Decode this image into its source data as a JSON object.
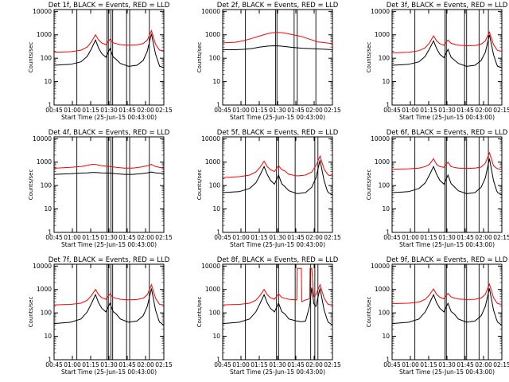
{
  "figure": {
    "x_ticks": [
      "00:45",
      "01:00",
      "01:15",
      "01:30",
      "01:45",
      "02:00",
      "02:15"
    ],
    "x_label": "Start Time (25-Jun-15 00:43:00)",
    "y_label": "Counts/sec",
    "y_ticks": [
      "1",
      "10",
      "100",
      "1000",
      "10000"
    ]
  },
  "chart_data": [
    {
      "type": "line",
      "detector": "1f",
      "title": "Det 1f, BLACK = Events, RED = LLD",
      "xlabel": "Start Time (25-Jun-15 00:43:00)",
      "ylabel": "Counts/sec",
      "xlim_minutes": [
        42,
        95
      ],
      "ylim": [
        1,
        12000
      ],
      "yscale": "log",
      "x_minutes": [
        42,
        50,
        55,
        58,
        60,
        62,
        63.5,
        65,
        67,
        69,
        70.5,
        72,
        74,
        78,
        82,
        85,
        87,
        89,
        91,
        92.5,
        93,
        95
      ],
      "series": [
        {
          "name": "LLD",
          "color": "#ff0000",
          "values": [
            180,
            190,
            220,
            300,
            500,
            1000,
            600,
            450,
            380,
            650,
            460,
            420,
            380,
            360,
            370,
            420,
            600,
            1500,
            400,
            250,
            220,
            210
          ]
        },
        {
          "name": "Events",
          "color": "#000000",
          "values": [
            50,
            55,
            70,
            120,
            250,
            600,
            270,
            160,
            110,
            260,
            115,
            90,
            60,
            45,
            50,
            80,
            200,
            1100,
            150,
            60,
            45,
            40
          ]
        }
      ],
      "vlines_minutes": [
        53,
        67.5,
        68.2,
        69.5,
        70.3,
        77,
        78.5,
        88
      ]
    },
    {
      "type": "line",
      "detector": "2f",
      "title": "Det 2f, BLACK = Events, RED = LLD",
      "xlabel": "Start Time (25-Jun-15 00:43:00)",
      "ylabel": "Counts/sec",
      "xlim_minutes": [
        42,
        95
      ],
      "ylim": [
        1,
        12000
      ],
      "yscale": "log",
      "x_minutes": [
        42,
        48,
        52,
        56,
        60,
        64,
        67,
        70,
        73,
        76,
        80,
        84,
        88,
        92,
        95
      ],
      "series": [
        {
          "name": "LLD",
          "color": "#ff0000",
          "values": [
            450,
            480,
            560,
            700,
            900,
            1150,
            1250,
            1250,
            1150,
            1000,
            850,
            650,
            500,
            450,
            420
          ]
        },
        {
          "name": "Events",
          "color": "#000000",
          "values": [
            230,
            230,
            240,
            260,
            300,
            330,
            340,
            330,
            310,
            290,
            270,
            260,
            250,
            240,
            230
          ]
        }
      ],
      "vlines_minutes": [
        53,
        67.5,
        68.2,
        76.5,
        78,
        87
      ]
    },
    {
      "type": "line",
      "detector": "3f",
      "title": "Det 3f, BLACK = Events, RED = LLD",
      "xlabel": "Start Time (25-Jun-15 00:43:00)",
      "ylabel": "Counts/sec",
      "xlim_minutes": [
        42,
        95
      ],
      "ylim": [
        1,
        12000
      ],
      "yscale": "log",
      "x_minutes": [
        42,
        50,
        55,
        58,
        60,
        62,
        63.5,
        65,
        67,
        69,
        70.5,
        72,
        74,
        78,
        82,
        85,
        87,
        89,
        91,
        92.5,
        93,
        95
      ],
      "series": [
        {
          "name": "LLD",
          "color": "#ff0000",
          "values": [
            170,
            180,
            210,
            280,
            450,
            900,
            550,
            420,
            360,
            600,
            430,
            400,
            360,
            340,
            350,
            400,
            550,
            1300,
            380,
            240,
            210,
            200
          ]
        },
        {
          "name": "Events",
          "color": "#000000",
          "values": [
            50,
            55,
            70,
            120,
            250,
            550,
            260,
            150,
            105,
            240,
            110,
            85,
            60,
            45,
            50,
            80,
            180,
            1000,
            140,
            55,
            45,
            40
          ]
        }
      ],
      "vlines_minutes": [
        53,
        67.5,
        68.2,
        77,
        78,
        84,
        88.5
      ]
    },
    {
      "type": "line",
      "detector": "4f",
      "title": "Det 4f, BLACK = Events, RED = LLD",
      "xlabel": "Start Time (25-Jun-15 00:43:00)",
      "ylabel": "Counts/sec",
      "xlim_minutes": [
        42,
        95
      ],
      "ylim": [
        1,
        12000
      ],
      "yscale": "log",
      "x_minutes": [
        42,
        50,
        55,
        58,
        60,
        62,
        65,
        69,
        72,
        76,
        80,
        84,
        87,
        89,
        91,
        95
      ],
      "series": [
        {
          "name": "LLD",
          "color": "#ff0000",
          "values": [
            550,
            600,
            650,
            720,
            800,
            800,
            700,
            650,
            600,
            560,
            560,
            620,
            700,
            800,
            650,
            550
          ]
        },
        {
          "name": "Events",
          "color": "#000000",
          "values": [
            300,
            320,
            340,
            350,
            360,
            360,
            350,
            340,
            320,
            300,
            300,
            320,
            350,
            380,
            350,
            330
          ]
        }
      ],
      "vlines_minutes": [
        53,
        67.5,
        68.2,
        69.5,
        70.3,
        77,
        78.5,
        88
      ]
    },
    {
      "type": "line",
      "detector": "5f",
      "title": "Det 5f, BLACK = Events, RED = LLD",
      "xlabel": "Start Time (25-Jun-15 00:43:00)",
      "ylabel": "Counts/sec",
      "xlim_minutes": [
        42,
        95
      ],
      "ylim": [
        1,
        12000
      ],
      "yscale": "log",
      "x_minutes": [
        42,
        50,
        55,
        58,
        60,
        62,
        63.5,
        65,
        67,
        69,
        70.5,
        72,
        74,
        78,
        82,
        85,
        87,
        89,
        91,
        92.5,
        93,
        95
      ],
      "series": [
        {
          "name": "LLD",
          "color": "#ff0000",
          "values": [
            220,
            240,
            280,
            380,
            600,
            1100,
            650,
            480,
            400,
            700,
            480,
            420,
            300,
            260,
            280,
            380,
            700,
            1800,
            500,
            320,
            280,
            260
          ]
        },
        {
          "name": "Events",
          "color": "#000000",
          "values": [
            50,
            55,
            75,
            130,
            280,
            650,
            300,
            170,
            115,
            280,
            120,
            90,
            60,
            45,
            50,
            85,
            210,
            1200,
            160,
            60,
            50,
            40
          ]
        }
      ],
      "vlines_minutes": [
        53,
        68,
        69,
        77,
        86.5,
        88
      ]
    },
    {
      "type": "line",
      "detector": "6f",
      "title": "Det 6f, BLACK = Events, RED = LLD",
      "xlabel": "Start Time (25-Jun-15 00:43:00)",
      "ylabel": "Counts/sec",
      "xlim_minutes": [
        42,
        95
      ],
      "ylim": [
        1,
        12000
      ],
      "yscale": "log",
      "x_minutes": [
        42,
        50,
        55,
        58,
        60,
        62,
        63.5,
        65,
        67,
        69,
        70.5,
        72,
        74,
        78,
        82,
        85,
        87,
        89,
        91,
        92.5,
        93,
        95
      ],
      "series": [
        {
          "name": "LLD",
          "color": "#ff0000",
          "values": [
            500,
            520,
            560,
            650,
            800,
            1400,
            800,
            650,
            600,
            1000,
            650,
            600,
            560,
            540,
            560,
            620,
            900,
            2500,
            700,
            550,
            520,
            500
          ]
        },
        {
          "name": "Events",
          "color": "#000000",
          "values": [
            50,
            55,
            75,
            130,
            280,
            650,
            300,
            170,
            115,
            280,
            120,
            90,
            60,
            45,
            50,
            85,
            210,
            1400,
            160,
            60,
            50,
            40
          ]
        }
      ],
      "vlines_minutes": [
        53,
        67.5,
        68.2,
        77,
        78,
        84,
        88.5
      ]
    },
    {
      "type": "line",
      "detector": "7f",
      "title": "Det 7f, BLACK = Events, RED = LLD",
      "xlabel": "Start Time (25-Jun-15 00:43:00)",
      "ylabel": "Counts/sec",
      "xlim_minutes": [
        42,
        95
      ],
      "ylim": [
        1,
        12000
      ],
      "yscale": "log",
      "x_minutes": [
        42,
        50,
        55,
        58,
        60,
        62,
        63.5,
        65,
        67,
        69,
        70.5,
        72,
        74,
        78,
        82,
        85,
        87,
        89,
        91,
        92.5,
        93,
        95
      ],
      "series": [
        {
          "name": "LLD",
          "color": "#ff0000",
          "values": [
            220,
            230,
            260,
            350,
            550,
            1000,
            600,
            450,
            380,
            650,
            460,
            420,
            380,
            360,
            370,
            420,
            600,
            1600,
            420,
            260,
            230,
            220
          ]
        },
        {
          "name": "Events",
          "color": "#000000",
          "values": [
            35,
            40,
            55,
            110,
            250,
            600,
            270,
            160,
            110,
            260,
            115,
            90,
            55,
            40,
            45,
            75,
            190,
            1100,
            130,
            50,
            40,
            30
          ]
        }
      ],
      "vlines_minutes": [
        53,
        67.5,
        68.2,
        69.5,
        70.3,
        77,
        78.5,
        88
      ]
    },
    {
      "type": "line",
      "detector": "8f",
      "title": "Det 8f, BLACK = Events, RED = LLD",
      "xlabel": "Start Time (25-Jun-15 00:43:00)",
      "ylabel": "Counts/sec",
      "xlim_minutes": [
        42,
        95
      ],
      "ylim": [
        1,
        12000
      ],
      "yscale": "log",
      "x_minutes": [
        42,
        50,
        55,
        58,
        60,
        62,
        63.5,
        65,
        67,
        69,
        70.5,
        72,
        74,
        77.8,
        78,
        80,
        80.2,
        82,
        84,
        84.2,
        85,
        86,
        87,
        89,
        91,
        92.5,
        93,
        95
      ],
      "series": [
        {
          "name": "LLD",
          "color": "#ff0000",
          "values": [
            220,
            230,
            260,
            350,
            550,
            1000,
            600,
            450,
            380,
            650,
            460,
            420,
            380,
            360,
            8000,
            8000,
            300,
            360,
            400,
            8000,
            8000,
            500,
            600,
            1600,
            420,
            260,
            230,
            220
          ]
        },
        {
          "name": "Events",
          "color": "#000000",
          "values": [
            35,
            40,
            55,
            110,
            250,
            600,
            270,
            160,
            110,
            260,
            115,
            90,
            55,
            45,
            45,
            42,
            42,
            45,
            200,
            300,
            1200,
            250,
            190,
            1100,
            130,
            50,
            40,
            30
          ]
        }
      ],
      "vlines_minutes": [
        53,
        68,
        69,
        77,
        84.5,
        86.5,
        88
      ]
    },
    {
      "type": "line",
      "detector": "9f",
      "title": "Det 9f, BLACK = Events, RED = LLD",
      "xlabel": "Start Time (25-Jun-15 00:43:00)",
      "ylabel": "Counts/sec",
      "xlim_minutes": [
        42,
        95
      ],
      "ylim": [
        1,
        12000
      ],
      "yscale": "log",
      "x_minutes": [
        42,
        50,
        55,
        58,
        60,
        62,
        63.5,
        65,
        67,
        69,
        70.5,
        72,
        74,
        78,
        82,
        85,
        87,
        89,
        91,
        92.5,
        93,
        95
      ],
      "series": [
        {
          "name": "LLD",
          "color": "#ff0000",
          "values": [
            250,
            260,
            290,
            380,
            580,
            1050,
            620,
            470,
            400,
            680,
            480,
            430,
            390,
            370,
            380,
            430,
            620,
            1700,
            440,
            280,
            250,
            230
          ]
        },
        {
          "name": "Events",
          "color": "#000000",
          "values": [
            35,
            40,
            55,
            110,
            250,
            600,
            270,
            160,
            110,
            260,
            115,
            90,
            55,
            40,
            45,
            75,
            190,
            1100,
            130,
            50,
            40,
            30
          ]
        }
      ],
      "vlines_minutes": [
        53,
        67.5,
        68.2,
        77,
        78,
        84,
        88.5
      ]
    }
  ]
}
